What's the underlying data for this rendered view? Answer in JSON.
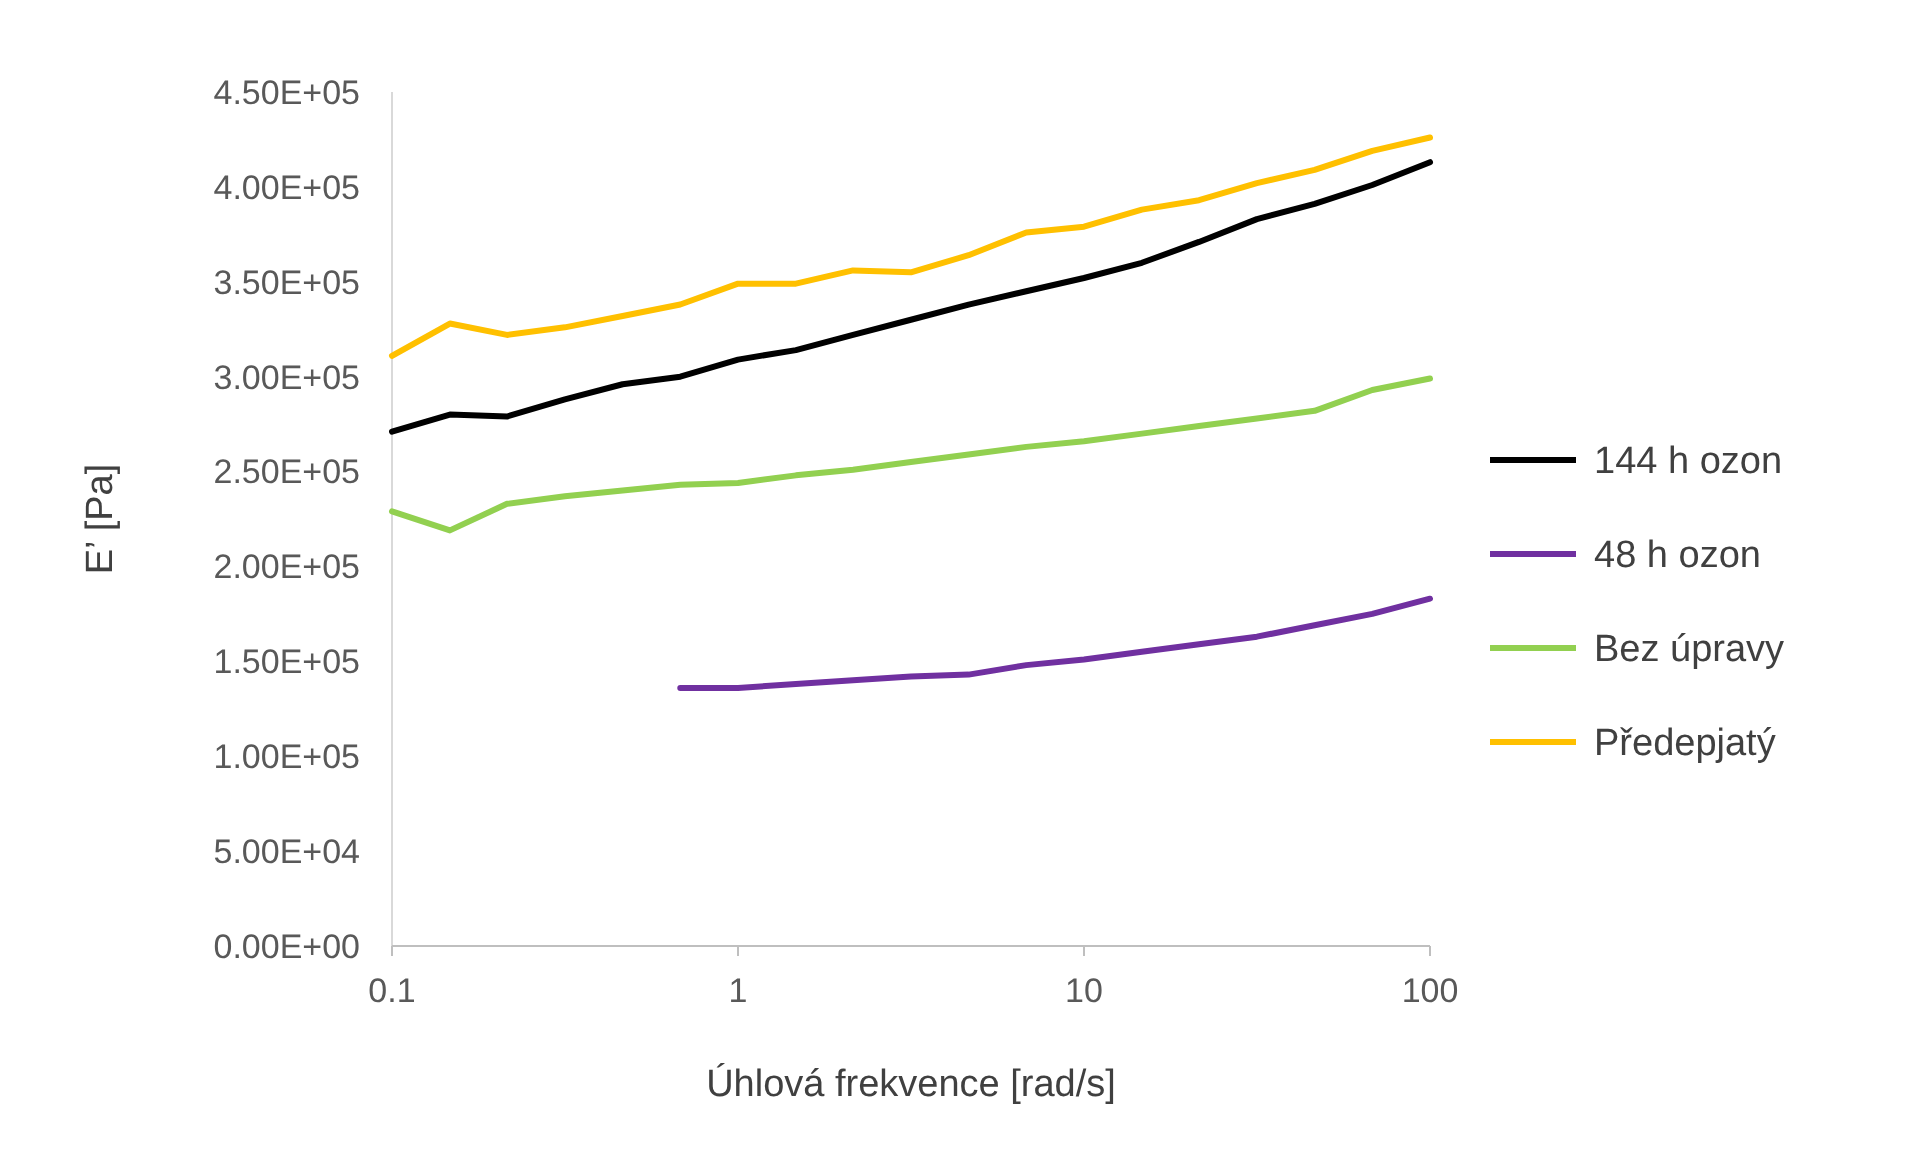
{
  "chart_data": {
    "type": "line",
    "xlabel": "Úhlová frekvence [rad/s]",
    "ylabel": "E’ [Pa]",
    "log": "x",
    "x": [
      0.1,
      0.147,
      0.215,
      0.316,
      0.464,
      0.681,
      1,
      1.47,
      2.15,
      3.16,
      4.64,
      6.81,
      10,
      14.7,
      21.5,
      31.6,
      46.4,
      68.1,
      100
    ],
    "xlim": [
      0.1,
      100
    ],
    "xticks": [
      0.1,
      1,
      10,
      100
    ],
    "ylim": [
      0,
      450000
    ],
    "yticks": [
      {
        "value": 0,
        "label": "0.00E+00"
      },
      {
        "value": 50000,
        "label": "5.00E+04"
      },
      {
        "value": 100000,
        "label": "1.00E+05"
      },
      {
        "value": 150000,
        "label": "1.50E+05"
      },
      {
        "value": 200000,
        "label": "2.00E+05"
      },
      {
        "value": 250000,
        "label": "2.50E+05"
      },
      {
        "value": 300000,
        "label": "3.00E+05"
      },
      {
        "value": 350000,
        "label": "3.50E+05"
      },
      {
        "value": 400000,
        "label": "4.00E+05"
      },
      {
        "value": 450000,
        "label": "4.50E+05"
      }
    ],
    "grid": false,
    "legend": "right",
    "line_style": "solid",
    "series": [
      {
        "name": "144 h ozon",
        "color": "#000000",
        "values": [
          271000,
          280000,
          279000,
          288000,
          296000,
          300000,
          309000,
          314000,
          322000,
          330000,
          338000,
          345000,
          352000,
          360000,
          371000,
          383000,
          391000,
          401000,
          413000
        ]
      },
      {
        "name": "48 h ozon",
        "color": "#7030a0",
        "values": [
          null,
          null,
          null,
          null,
          null,
          136000,
          136000,
          138000,
          140000,
          142000,
          143000,
          148000,
          151000,
          155000,
          159000,
          163000,
          169000,
          175000,
          183000
        ]
      },
      {
        "name": "Bez úpravy",
        "color": "#92d050",
        "values": [
          229000,
          219000,
          233000,
          237000,
          240000,
          243000,
          244000,
          248000,
          251000,
          255000,
          259000,
          263000,
          266000,
          270000,
          274000,
          278000,
          282000,
          293000,
          299000
        ]
      },
      {
        "name": "Předepjatý",
        "color": "#ffc000",
        "values": [
          311000,
          328000,
          322000,
          326000,
          332000,
          338000,
          349000,
          349000,
          356000,
          355000,
          364000,
          376000,
          379000,
          388000,
          393000,
          402000,
          409000,
          419000,
          426000
        ]
      }
    ]
  }
}
